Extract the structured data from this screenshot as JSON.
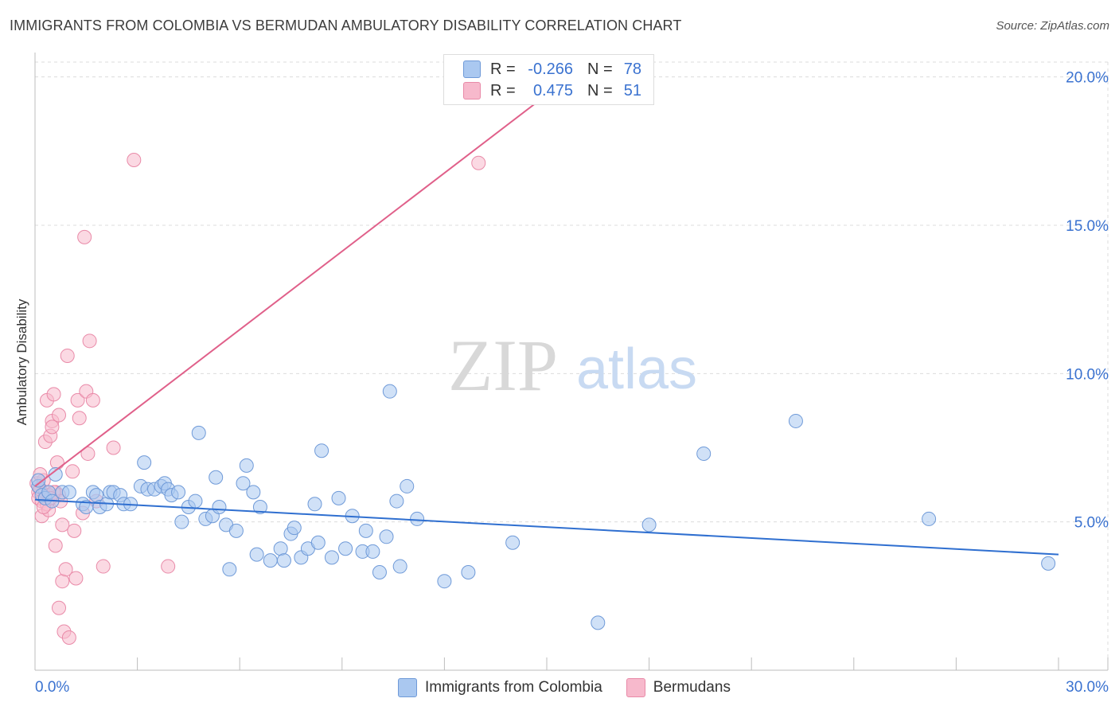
{
  "title": "IMMIGRANTS FROM COLOMBIA VS BERMUDAN AMBULATORY DISABILITY CORRELATION CHART",
  "source": "Source: ZipAtlas.com",
  "watermark": {
    "zip": "ZIP",
    "atlas": "atlas"
  },
  "colors": {
    "blue_fill": "#aac8f0",
    "blue_stroke": "#6f9ad8",
    "blue_line": "#2f6fd0",
    "pink_fill": "#f7b9cc",
    "pink_stroke": "#e98aa8",
    "pink_line": "#e0608a",
    "tick_label": "#3a72d0"
  },
  "legend": {
    "rows": [
      {
        "r_label": "R =",
        "r_value": "-0.266",
        "n_label": "N =",
        "n_value": "78"
      },
      {
        "r_label": "R =",
        "r_value": "0.475",
        "n_label": "N =",
        "n_value": "51"
      }
    ]
  },
  "chart_data": {
    "type": "scatter",
    "title": "IMMIGRANTS FROM COLOMBIA VS BERMUDAN AMBULATORY DISABILITY CORRELATION CHART",
    "xlabel": "",
    "ylabel": "Ambulatory Disability",
    "xlim": [
      0,
      30
    ],
    "ylim": [
      0,
      20.5
    ],
    "x_tick_labels": [
      "0.0%",
      "30.0%"
    ],
    "y_ticks": [
      5,
      10,
      15,
      20
    ],
    "y_tick_labels": [
      "5.0%",
      "10.0%",
      "15.0%",
      "20.0%"
    ],
    "grid": true,
    "legend_position": "top-center",
    "series": [
      {
        "name": "Immigrants from Colombia",
        "color": "#aac8f0",
        "trend": {
          "x": [
            0,
            30
          ],
          "y": [
            5.75,
            3.9
          ]
        },
        "points": [
          [
            0.1,
            6.2
          ],
          [
            0.2,
            5.9
          ],
          [
            0.3,
            5.8
          ],
          [
            0.4,
            6.0
          ],
          [
            0.5,
            5.7
          ],
          [
            0.6,
            6.6
          ],
          [
            0.8,
            6.0
          ],
          [
            1.0,
            6.0
          ],
          [
            1.4,
            5.6
          ],
          [
            1.5,
            5.5
          ],
          [
            1.7,
            6.0
          ],
          [
            1.8,
            5.9
          ],
          [
            1.9,
            5.5
          ],
          [
            2.1,
            5.6
          ],
          [
            2.2,
            6.0
          ],
          [
            2.3,
            6.0
          ],
          [
            2.5,
            5.9
          ],
          [
            2.6,
            5.6
          ],
          [
            2.8,
            5.6
          ],
          [
            3.1,
            6.2
          ],
          [
            3.2,
            7.0
          ],
          [
            3.3,
            6.1
          ],
          [
            3.5,
            6.1
          ],
          [
            3.7,
            6.2
          ],
          [
            3.8,
            6.3
          ],
          [
            3.9,
            6.1
          ],
          [
            4.0,
            5.9
          ],
          [
            4.2,
            6.0
          ],
          [
            4.3,
            5.0
          ],
          [
            4.5,
            5.5
          ],
          [
            4.7,
            5.7
          ],
          [
            4.8,
            8.0
          ],
          [
            5.0,
            5.1
          ],
          [
            5.2,
            5.2
          ],
          [
            5.3,
            6.5
          ],
          [
            5.4,
            5.5
          ],
          [
            5.6,
            4.9
          ],
          [
            5.7,
            3.4
          ],
          [
            5.9,
            4.7
          ],
          [
            6.1,
            6.3
          ],
          [
            6.2,
            6.9
          ],
          [
            6.4,
            6.0
          ],
          [
            6.5,
            3.9
          ],
          [
            6.6,
            5.5
          ],
          [
            6.9,
            3.7
          ],
          [
            7.2,
            4.1
          ],
          [
            7.3,
            3.7
          ],
          [
            7.5,
            4.6
          ],
          [
            7.6,
            4.8
          ],
          [
            7.8,
            3.8
          ],
          [
            8.0,
            4.1
          ],
          [
            8.2,
            5.6
          ],
          [
            8.3,
            4.3
          ],
          [
            8.4,
            7.4
          ],
          [
            8.7,
            3.8
          ],
          [
            8.9,
            5.8
          ],
          [
            9.1,
            4.1
          ],
          [
            9.3,
            5.2
          ],
          [
            9.6,
            4.0
          ],
          [
            9.7,
            4.7
          ],
          [
            9.9,
            4.0
          ],
          [
            10.1,
            3.3
          ],
          [
            10.3,
            4.5
          ],
          [
            10.4,
            9.4
          ],
          [
            10.6,
            5.7
          ],
          [
            10.7,
            3.5
          ],
          [
            10.9,
            6.2
          ],
          [
            11.2,
            5.1
          ],
          [
            12.0,
            3.0
          ],
          [
            12.7,
            3.3
          ],
          [
            14.0,
            4.3
          ],
          [
            16.5,
            1.6
          ],
          [
            18.0,
            4.9
          ],
          [
            19.6,
            7.3
          ],
          [
            22.3,
            8.4
          ],
          [
            26.2,
            5.1
          ],
          [
            29.7,
            3.6
          ],
          [
            0.1,
            6.4
          ]
        ]
      },
      {
        "name": "Bermudans",
        "color": "#f7b9cc",
        "trend": {
          "x": [
            0,
            15
          ],
          "y": [
            6.2,
            19.4
          ]
        },
        "points": [
          [
            0.05,
            6.3
          ],
          [
            0.1,
            6.0
          ],
          [
            0.1,
            5.8
          ],
          [
            0.15,
            6.1
          ],
          [
            0.2,
            5.7
          ],
          [
            0.2,
            5.2
          ],
          [
            0.25,
            6.4
          ],
          [
            0.3,
            7.7
          ],
          [
            0.3,
            6.0
          ],
          [
            0.35,
            9.1
          ],
          [
            0.35,
            5.6
          ],
          [
            0.4,
            5.4
          ],
          [
            0.45,
            7.9
          ],
          [
            0.5,
            8.4
          ],
          [
            0.5,
            8.2
          ],
          [
            0.55,
            9.3
          ],
          [
            0.6,
            6.0
          ],
          [
            0.6,
            4.2
          ],
          [
            0.65,
            7.0
          ],
          [
            0.7,
            8.6
          ],
          [
            0.7,
            5.9
          ],
          [
            0.75,
            5.7
          ],
          [
            0.8,
            4.9
          ],
          [
            0.8,
            3.0
          ],
          [
            0.85,
            1.3
          ],
          [
            0.9,
            3.4
          ],
          [
            0.95,
            10.6
          ],
          [
            1.0,
            1.1
          ],
          [
            1.1,
            6.7
          ],
          [
            1.15,
            4.7
          ],
          [
            1.2,
            3.1
          ],
          [
            1.25,
            9.1
          ],
          [
            1.3,
            8.5
          ],
          [
            1.4,
            5.3
          ],
          [
            1.45,
            14.6
          ],
          [
            1.5,
            9.4
          ],
          [
            1.55,
            7.3
          ],
          [
            1.6,
            11.1
          ],
          [
            1.7,
            9.1
          ],
          [
            1.8,
            5.7
          ],
          [
            2.0,
            3.5
          ],
          [
            2.3,
            7.5
          ],
          [
            2.9,
            17.2
          ],
          [
            3.9,
            3.5
          ],
          [
            13.0,
            17.1
          ],
          [
            0.7,
            2.1
          ],
          [
            0.15,
            6.6
          ],
          [
            0.25,
            5.5
          ],
          [
            0.4,
            5.9
          ],
          [
            0.55,
            6.0
          ],
          [
            0.45,
            5.8
          ]
        ]
      }
    ]
  }
}
